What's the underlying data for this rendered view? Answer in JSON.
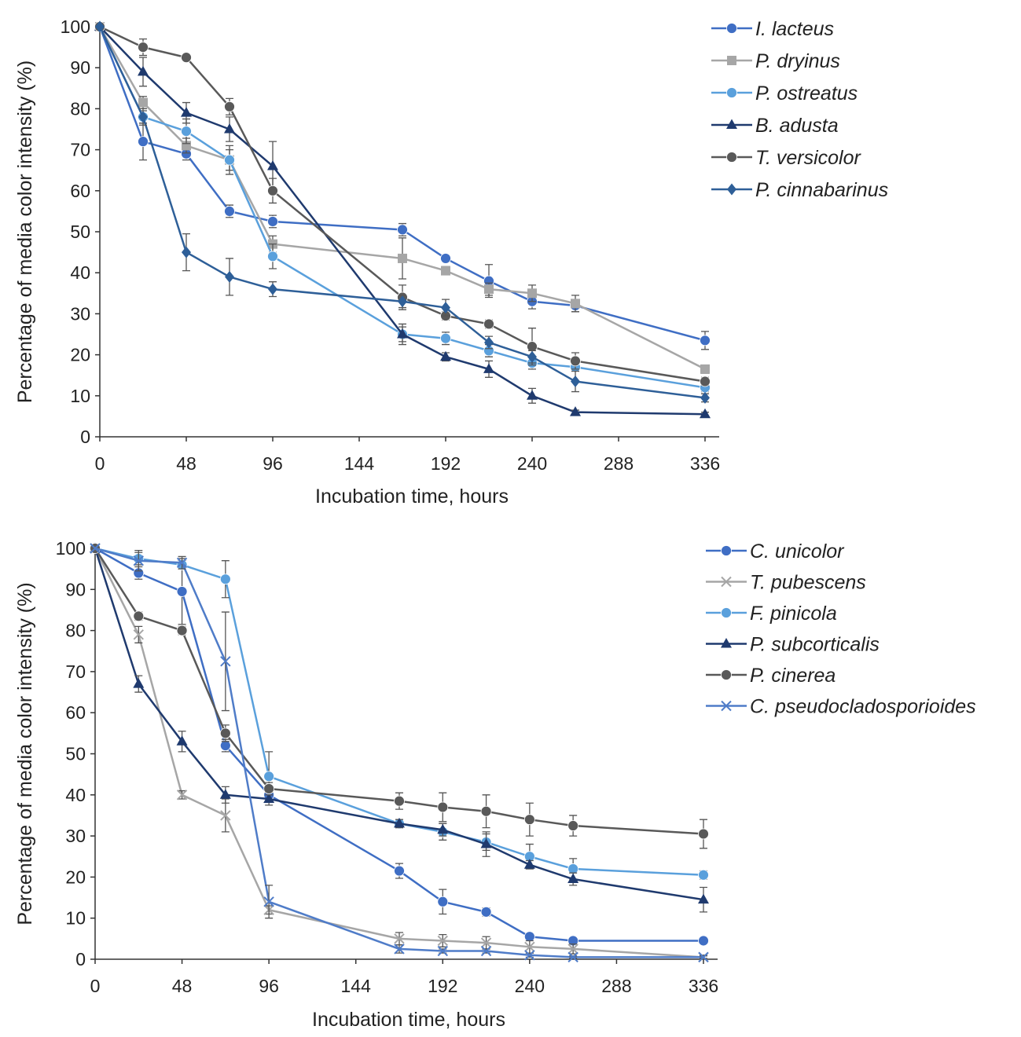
{
  "chart_data": [
    {
      "type": "line",
      "xlabel": "Incubation time, hours",
      "ylabel": "Percentage of media color intensity (%)",
      "xlim": [
        0,
        336
      ],
      "ylim": [
        0,
        100
      ],
      "xticks": [
        0,
        48,
        96,
        144,
        192,
        240,
        288,
        336
      ],
      "yticks": [
        0,
        10,
        20,
        30,
        40,
        50,
        60,
        70,
        80,
        90,
        100
      ],
      "legend_position": "top-right",
      "series": [
        {
          "name": "I. lacteus",
          "color": "#3f6ec4",
          "marker": "circle",
          "x": [
            0,
            24,
            48,
            72,
            96,
            168,
            192,
            216,
            240,
            264,
            336
          ],
          "y": [
            100,
            72,
            69,
            55,
            52.5,
            50.5,
            43.5,
            38,
            33,
            32,
            23.5
          ],
          "err": [
            0,
            4.5,
            1.5,
            1.5,
            1.5,
            1.5,
            0.8,
            4,
            1.8,
            1.5,
            2.2
          ]
        },
        {
          "name": "P. dryinus",
          "color": "#a6a6a6",
          "marker": "square",
          "x": [
            0,
            24,
            48,
            72,
            96,
            168,
            192,
            216,
            240,
            264,
            336
          ],
          "y": [
            100,
            81.5,
            71,
            67.5,
            47,
            43.5,
            40.5,
            36,
            35,
            32.5,
            16.5
          ],
          "err": [
            0,
            1.5,
            1.8,
            2.5,
            2,
            5,
            1,
            1.5,
            2,
            2,
            1
          ]
        },
        {
          "name": "P. ostreatus",
          "color": "#5aa0dc",
          "marker": "circle",
          "x": [
            0,
            24,
            48,
            72,
            96,
            168,
            192,
            216,
            240,
            264,
            336
          ],
          "y": [
            100,
            78,
            74.5,
            67.5,
            44,
            25,
            24,
            21,
            18,
            17,
            12
          ],
          "err": [
            0,
            1.5,
            3,
            3.5,
            3,
            1.8,
            1.5,
            1.5,
            1.5,
            1,
            1
          ]
        },
        {
          "name": "B. adusta",
          "color": "#1f3a6e",
          "marker": "triangle",
          "x": [
            0,
            24,
            48,
            72,
            96,
            168,
            192,
            216,
            240,
            264,
            336
          ],
          "y": [
            100,
            89,
            79,
            75,
            66,
            25,
            19.5,
            16.5,
            10,
            6,
            5.5
          ],
          "err": [
            0,
            3.5,
            2.5,
            3,
            6,
            2.5,
            1,
            2,
            1.8,
            0.5,
            0.5
          ]
        },
        {
          "name": "T. versicolor",
          "color": "#595959",
          "marker": "circle",
          "x": [
            0,
            24,
            48,
            72,
            96,
            168,
            192,
            216,
            240,
            264,
            336
          ],
          "y": [
            100,
            95,
            92.5,
            80.5,
            60,
            34,
            29.5,
            27.5,
            22,
            18.5,
            13.5
          ],
          "err": [
            0,
            2,
            0.8,
            2,
            3,
            3,
            1,
            1,
            4.5,
            2,
            1
          ]
        },
        {
          "name": "P. cinnabarinus",
          "color": "#2e5f98",
          "marker": "diamond",
          "x": [
            0,
            24,
            48,
            72,
            96,
            168,
            192,
            216,
            240,
            264,
            336
          ],
          "y": [
            100,
            78,
            45,
            39,
            36,
            33,
            31.5,
            23,
            19.5,
            13.5,
            9.5
          ],
          "err": [
            0,
            2,
            4.5,
            4.5,
            1.8,
            1.5,
            2,
            1.5,
            1.5,
            2.5,
            1
          ]
        }
      ]
    },
    {
      "type": "line",
      "xlabel": "Incubation time, hours",
      "ylabel": "Percentage of media color intensity (%)",
      "xlim": [
        0,
        336
      ],
      "ylim": [
        0,
        100
      ],
      "xticks": [
        0,
        48,
        96,
        144,
        192,
        240,
        288,
        336
      ],
      "yticks": [
        0,
        10,
        20,
        30,
        40,
        50,
        60,
        70,
        80,
        90,
        100
      ],
      "legend_position": "top-right",
      "series": [
        {
          "name": "C. unicolor",
          "color": "#3f6ec4",
          "marker": "circle",
          "x": [
            0,
            24,
            48,
            72,
            96,
            168,
            192,
            216,
            240,
            264,
            336
          ],
          "y": [
            100,
            94,
            89.5,
            52,
            40,
            21.5,
            14,
            11.5,
            5.5,
            4.5,
            4.5
          ],
          "err": [
            0,
            1.5,
            8,
            1.5,
            1.5,
            1.8,
            3,
            1,
            0.5,
            0.5,
            0.5
          ]
        },
        {
          "name": "T. pubescens",
          "color": "#a6a6a6",
          "marker": "x",
          "x": [
            0,
            24,
            48,
            72,
            96,
            168,
            192,
            216,
            240,
            264,
            336
          ],
          "y": [
            100,
            79,
            40,
            35,
            12,
            5,
            4.5,
            4,
            3,
            2.5,
            0.5
          ],
          "err": [
            0,
            2,
            1,
            4,
            1,
            1.5,
            1.5,
            1.5,
            1.5,
            1.2,
            0.5
          ]
        },
        {
          "name": "F. pinicola",
          "color": "#5aa0dc",
          "marker": "circle",
          "x": [
            0,
            24,
            48,
            72,
            96,
            168,
            192,
            216,
            240,
            264,
            336
          ],
          "y": [
            100,
            97.5,
            96,
            92.5,
            44.5,
            33,
            31,
            28.5,
            25,
            22,
            20.5
          ],
          "err": [
            0,
            1.5,
            1,
            4.5,
            6,
            1,
            2,
            2,
            3,
            2.5,
            1
          ]
        },
        {
          "name": "P. subcorticalis",
          "color": "#1f3a6e",
          "marker": "triangle",
          "x": [
            0,
            24,
            48,
            72,
            96,
            168,
            192,
            216,
            240,
            264,
            336
          ],
          "y": [
            100,
            67,
            53,
            40,
            39,
            33,
            31.5,
            28,
            23,
            19.5,
            14.5
          ],
          "err": [
            0,
            2,
            2.5,
            2,
            1.5,
            1,
            1.5,
            3,
            1,
            1.5,
            3
          ]
        },
        {
          "name": "P. cinerea",
          "color": "#595959",
          "marker": "circle",
          "x": [
            0,
            24,
            48,
            72,
            96,
            168,
            192,
            216,
            240,
            264,
            336
          ],
          "y": [
            100,
            83.5,
            80,
            55,
            41.5,
            38.5,
            37,
            36,
            34,
            32.5,
            30.5
          ],
          "err": [
            0,
            1,
            1,
            2,
            1.5,
            2,
            3.5,
            4,
            4,
            2.5,
            3.5
          ]
        },
        {
          "name": "C. pseudocladosporioides",
          "color": "#4f7cc8",
          "marker": "x",
          "x": [
            0,
            24,
            48,
            72,
            96,
            168,
            192,
            216,
            240,
            264,
            336
          ],
          "y": [
            100,
            97,
            96.5,
            72.5,
            14,
            2.5,
            2,
            2,
            1,
            0.5,
            0.5
          ],
          "err": [
            0,
            2.5,
            1.5,
            12,
            4,
            1,
            0.5,
            0.5,
            0.5,
            0.3,
            0.3
          ]
        }
      ]
    }
  ]
}
